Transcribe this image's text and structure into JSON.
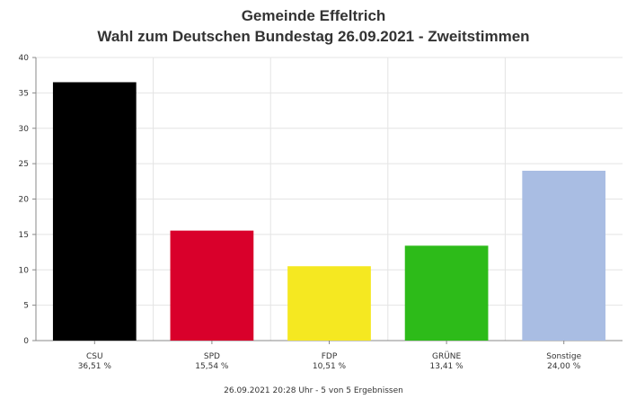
{
  "chart_data": {
    "type": "bar",
    "title": "Gemeinde Effeltrich",
    "subtitle": "Wahl zum Deutschen Bundestag 26.09.2021  - Zweitstimmen",
    "categories": [
      "CSU",
      "SPD",
      "FDP",
      "GRÜNE",
      "Sonstige"
    ],
    "percent_labels": [
      "36,51 %",
      "15,54 %",
      "10,51 %",
      "13,41 %",
      "24,00 %"
    ],
    "values": [
      36.51,
      15.54,
      10.51,
      13.41,
      24.0
    ],
    "colors": [
      "#000000",
      "#d9002b",
      "#f5e821",
      "#2dbb19",
      "#a9bde3"
    ],
    "ylim": [
      0,
      40
    ],
    "yticks": [
      0,
      5,
      10,
      15,
      20,
      25,
      30,
      35,
      40
    ],
    "grid": true,
    "footer": "26.09.2021 20:28 Uhr - 5 von 5 Ergebnissen"
  }
}
